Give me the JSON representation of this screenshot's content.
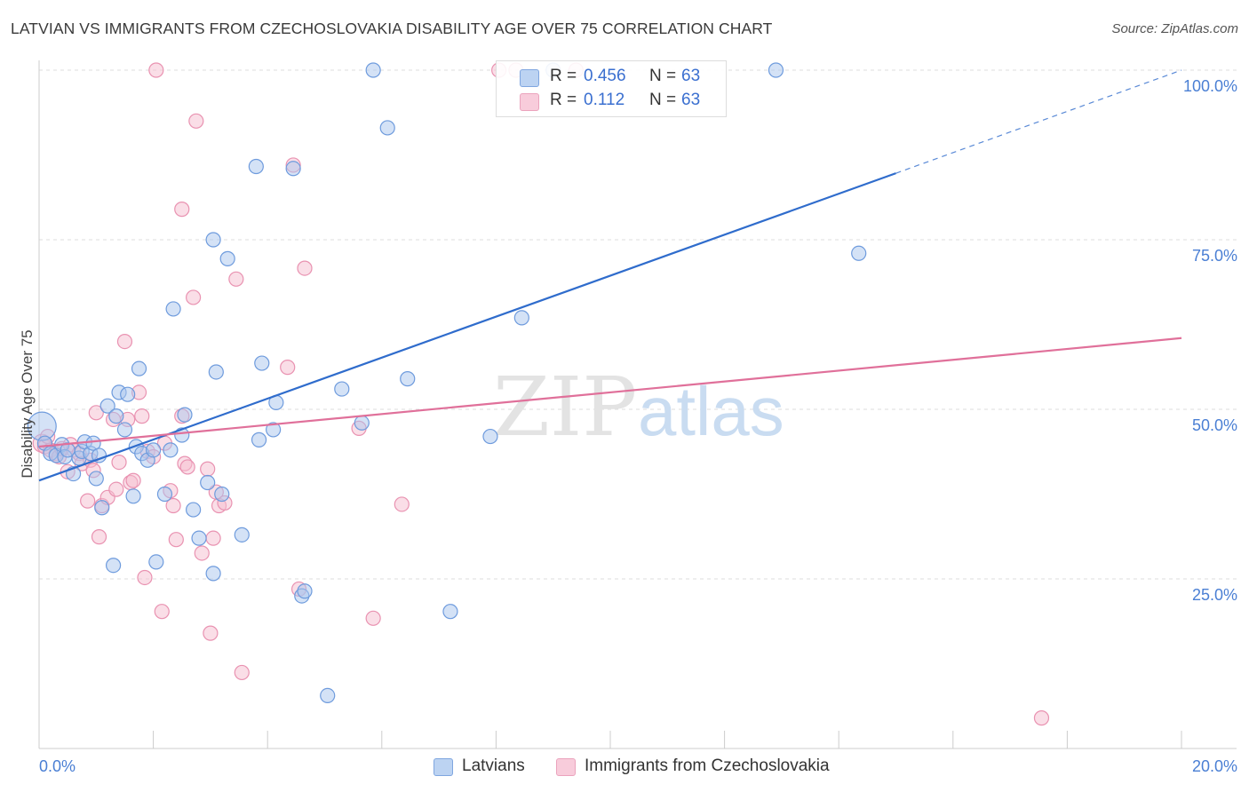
{
  "header": {
    "title": "LATVIAN VS IMMIGRANTS FROM CZECHOSLOVAKIA DISABILITY AGE OVER 75 CORRELATION CHART",
    "source": "Source: ZipAtlas.com"
  },
  "watermark": {
    "zip": "ZIP",
    "atlas": "atlas"
  },
  "legend_top": {
    "rows": [
      {
        "r_label": "R =",
        "r_value": "0.456",
        "n_label": "N =",
        "n_value": "63"
      },
      {
        "r_label": "R =",
        "r_value": "0.112",
        "n_label": "N =",
        "n_value": "63"
      }
    ]
  },
  "legend_bottom": {
    "series1": "Latvians",
    "series2": "Immigrants from Czechoslovakia"
  },
  "colors": {
    "blue_fill": "#a9c6ee",
    "blue_stroke": "#6e9bdd",
    "blue_line": "#2f6ccc",
    "pink_fill": "#f6bdd0",
    "pink_stroke": "#e992b1",
    "pink_line": "#e0709a",
    "grid": "#dddddd",
    "tick_text": "#4a7fd4"
  },
  "chart_data": {
    "type": "scatter",
    "title": "LATVIAN VS IMMIGRANTS FROM CZECHOSLOVAKIA DISABILITY AGE OVER 75 CORRELATION CHART",
    "xlabel": "",
    "ylabel": "Disability Age Over 75",
    "xlim": [
      0,
      20
    ],
    "ylim": [
      0,
      100
    ],
    "x_tick_labels": [
      "0.0%",
      "20.0%"
    ],
    "y_ticks": [
      25,
      50,
      75,
      100
    ],
    "y_tick_labels": [
      "25.0%",
      "50.0%",
      "75.0%",
      "100.0%"
    ],
    "grid": true,
    "series": [
      {
        "name": "Latvians",
        "r": 0.456,
        "n": 63,
        "trend": {
          "x0": 0,
          "y0": 39.5,
          "x1": 15.0,
          "y1": 84.8,
          "dashed_to_x": 20,
          "dashed_to_y": 100
        },
        "points": [
          [
            0.05,
            47.5,
            16
          ],
          [
            0.1,
            45.0,
            8
          ],
          [
            0.2,
            43.5,
            8
          ],
          [
            0.3,
            43.2,
            8
          ],
          [
            0.4,
            44.8,
            8
          ],
          [
            0.45,
            43.0,
            8
          ],
          [
            0.5,
            44.0,
            8
          ],
          [
            0.6,
            40.5,
            8
          ],
          [
            0.7,
            42.8,
            8
          ],
          [
            0.75,
            43.8,
            8
          ],
          [
            0.8,
            45.2,
            8
          ],
          [
            0.9,
            43.5,
            8
          ],
          [
            0.95,
            45.0,
            8
          ],
          [
            1.0,
            39.8,
            8
          ],
          [
            1.05,
            43.2,
            8
          ],
          [
            1.1,
            35.5,
            8
          ],
          [
            1.2,
            50.5,
            8
          ],
          [
            1.3,
            27.0,
            8
          ],
          [
            1.35,
            49.0,
            8
          ],
          [
            1.4,
            52.5,
            8
          ],
          [
            1.5,
            47.0,
            8
          ],
          [
            1.55,
            52.2,
            8
          ],
          [
            1.65,
            37.2,
            8
          ],
          [
            1.7,
            44.5,
            8
          ],
          [
            1.75,
            56.0,
            8
          ],
          [
            1.8,
            43.5,
            8
          ],
          [
            1.9,
            42.5,
            8
          ],
          [
            2.0,
            44.0,
            8
          ],
          [
            2.05,
            27.5,
            8
          ],
          [
            2.2,
            37.5,
            8
          ],
          [
            2.3,
            44.0,
            8
          ],
          [
            2.35,
            64.8,
            8
          ],
          [
            2.5,
            46.2,
            8
          ],
          [
            2.55,
            49.2,
            8
          ],
          [
            2.7,
            35.2,
            8
          ],
          [
            2.8,
            31.0,
            8
          ],
          [
            2.95,
            39.2,
            8
          ],
          [
            3.05,
            75.0,
            8
          ],
          [
            3.05,
            25.8,
            8
          ],
          [
            3.1,
            55.5,
            8
          ],
          [
            3.2,
            37.5,
            8
          ],
          [
            3.3,
            72.2,
            8
          ],
          [
            3.55,
            31.5,
            8
          ],
          [
            3.8,
            85.8,
            8
          ],
          [
            3.85,
            45.5,
            8
          ],
          [
            3.9,
            56.8,
            8
          ],
          [
            4.1,
            47.0,
            8
          ],
          [
            4.15,
            51.0,
            8
          ],
          [
            4.45,
            85.5,
            8
          ],
          [
            4.6,
            22.5,
            8
          ],
          [
            4.65,
            23.2,
            8
          ],
          [
            5.05,
            7.8,
            8
          ],
          [
            5.3,
            53.0,
            8
          ],
          [
            5.65,
            48.0,
            8
          ],
          [
            5.85,
            100.0,
            8
          ],
          [
            6.1,
            91.5,
            8
          ],
          [
            6.45,
            54.5,
            8
          ],
          [
            7.2,
            20.2,
            8
          ],
          [
            7.9,
            46.0,
            8
          ],
          [
            8.45,
            63.5,
            8
          ],
          [
            9.0,
            100.0,
            8
          ],
          [
            12.9,
            100.0,
            8
          ],
          [
            14.35,
            73.0,
            8
          ]
        ]
      },
      {
        "name": "Immigrants from Czechoslovakia",
        "r": 0.112,
        "n": 63,
        "trend": {
          "x0": 0,
          "y0": 44.5,
          "x1": 20,
          "y1": 60.5
        },
        "points": [
          [
            0.05,
            45.0,
            10
          ],
          [
            0.1,
            44.5,
            8
          ],
          [
            0.2,
            44.0,
            8
          ],
          [
            0.3,
            43.5,
            8
          ],
          [
            0.35,
            43.0,
            8
          ],
          [
            0.4,
            44.2,
            8
          ],
          [
            0.5,
            40.8,
            8
          ],
          [
            0.55,
            44.8,
            8
          ],
          [
            0.6,
            44.0,
            8
          ],
          [
            0.7,
            43.5,
            8
          ],
          [
            0.75,
            42.0,
            8
          ],
          [
            0.85,
            36.5,
            8
          ],
          [
            0.9,
            42.5,
            8
          ],
          [
            0.95,
            41.0,
            8
          ],
          [
            1.0,
            49.5,
            8
          ],
          [
            1.05,
            31.2,
            8
          ],
          [
            1.1,
            35.8,
            8
          ],
          [
            1.2,
            37.0,
            8
          ],
          [
            1.3,
            48.5,
            8
          ],
          [
            1.35,
            38.2,
            8
          ],
          [
            1.4,
            42.2,
            8
          ],
          [
            1.5,
            60.0,
            8
          ],
          [
            1.55,
            48.5,
            8
          ],
          [
            1.6,
            39.2,
            8
          ],
          [
            1.65,
            39.5,
            8
          ],
          [
            1.75,
            52.5,
            8
          ],
          [
            1.8,
            49.0,
            8
          ],
          [
            1.85,
            25.2,
            8
          ],
          [
            1.9,
            43.8,
            8
          ],
          [
            2.0,
            43.0,
            8
          ],
          [
            2.05,
            100.0,
            8
          ],
          [
            2.15,
            20.2,
            8
          ],
          [
            2.2,
            45.0,
            8
          ],
          [
            2.3,
            38.0,
            8
          ],
          [
            2.35,
            35.8,
            8
          ],
          [
            2.4,
            30.8,
            8
          ],
          [
            2.5,
            49.0,
            8
          ],
          [
            2.5,
            79.5,
            8
          ],
          [
            2.55,
            42.0,
            8
          ],
          [
            2.6,
            41.5,
            8
          ],
          [
            2.7,
            66.5,
            8
          ],
          [
            2.75,
            92.5,
            8
          ],
          [
            2.85,
            28.8,
            8
          ],
          [
            2.95,
            41.2,
            8
          ],
          [
            3.0,
            17.0,
            8
          ],
          [
            3.05,
            31.0,
            8
          ],
          [
            3.1,
            37.8,
            8
          ],
          [
            3.15,
            35.8,
            8
          ],
          [
            3.25,
            36.2,
            8
          ],
          [
            3.45,
            69.2,
            8
          ],
          [
            3.55,
            11.2,
            8
          ],
          [
            4.35,
            56.2,
            8
          ],
          [
            4.45,
            86.0,
            8
          ],
          [
            4.55,
            23.5,
            8
          ],
          [
            4.65,
            70.8,
            8
          ],
          [
            5.6,
            47.2,
            8
          ],
          [
            5.85,
            19.2,
            8
          ],
          [
            6.35,
            36.0,
            8
          ],
          [
            8.05,
            100.0,
            8
          ],
          [
            8.35,
            100.0,
            8
          ],
          [
            9.4,
            100.0,
            8
          ],
          [
            17.55,
            4.5,
            8
          ],
          [
            0.15,
            46.0,
            8
          ]
        ]
      }
    ]
  }
}
